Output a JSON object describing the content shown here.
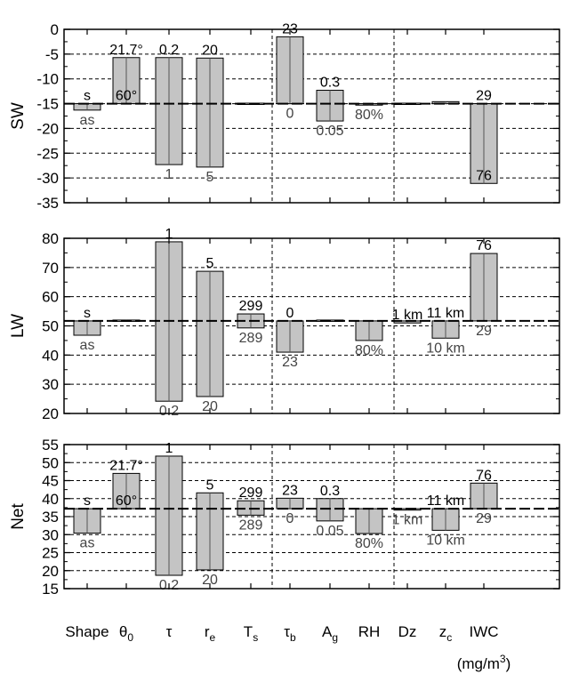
{
  "chart_data": [
    {
      "type": "bar",
      "panel": "SW",
      "ylabel": "SW",
      "ylim": [
        -35,
        0
      ],
      "yticks": [
        0,
        -5,
        -10,
        -15,
        -20,
        -25,
        -30,
        -35
      ],
      "baseline": -15,
      "grid": true,
      "bars": [
        {
          "category": "Shape",
          "ranges": [
            [
              -16.3,
              -15
            ]
          ],
          "upper_label": "s",
          "lower_label": "as"
        },
        {
          "category": "θ0",
          "ranges": [
            [
              -15,
              -5.7
            ]
          ],
          "upper_label": "21.7°",
          "lower_label": "60°",
          "lower_inside": true
        },
        {
          "category": "τ",
          "ranges": [
            [
              -27.3,
              -5.7
            ]
          ],
          "upper_label": "0.2",
          "lower_label": "1"
        },
        {
          "category": "re",
          "ranges": [
            [
              -27.8,
              -5.8
            ]
          ],
          "upper_label": "20",
          "lower_label": "5"
        },
        {
          "category": "Ts",
          "ranges": [
            [
              -15,
              -14.9
            ]
          ]
        },
        {
          "category": "τb",
          "ranges": [
            [
              -15,
              -1.5
            ]
          ],
          "upper_label": "23",
          "lower_label": "0"
        },
        {
          "category": "Ag",
          "ranges": [
            [
              -18.5,
              -12.3
            ]
          ],
          "upper_label": "0.3",
          "lower_label": "0.05"
        },
        {
          "category": "RH",
          "ranges": [
            [
              -15.3,
              -15
            ]
          ],
          "lower_label": "80%"
        },
        {
          "category": "Dz",
          "ranges": [
            [
              -15,
              -14.9
            ]
          ]
        },
        {
          "category": "zc",
          "ranges": [
            [
              -15,
              -14.6
            ]
          ]
        },
        {
          "category": "IWC",
          "ranges": [
            [
              -31.1,
              -15
            ]
          ],
          "upper_label": "29",
          "lower_label": "76",
          "lower_inside": true
        }
      ]
    },
    {
      "type": "bar",
      "panel": "LW",
      "ylabel": "LW",
      "ylim": [
        20,
        80
      ],
      "yticks": [
        80,
        70,
        60,
        50,
        40,
        30,
        20
      ],
      "baseline": 51.7,
      "grid": true,
      "bars": [
        {
          "category": "Shape",
          "ranges": [
            [
              46.8,
              51.7
            ]
          ],
          "upper_label": "s",
          "lower_label": "as"
        },
        {
          "category": "θ0",
          "ranges": [
            [
              51.7,
              52.0
            ]
          ]
        },
        {
          "category": "τ",
          "ranges": [
            [
              24.2,
              78.8
            ]
          ],
          "upper_label": "1",
          "lower_label": "0.2"
        },
        {
          "category": "re",
          "ranges": [
            [
              25.8,
              68.7
            ]
          ],
          "upper_label": "5",
          "lower_label": "20"
        },
        {
          "category": "Ts",
          "ranges": [
            [
              49.3,
              54.1
            ]
          ],
          "upper_label": "299",
          "lower_label": "289"
        },
        {
          "category": "τb",
          "ranges": [
            [
              41.0,
              51.7
            ]
          ],
          "upper_label": "0",
          "lower_label": "23"
        },
        {
          "category": "Ag",
          "ranges": [
            [
              51.7,
              52.0
            ]
          ]
        },
        {
          "category": "RH",
          "ranges": [
            [
              45.0,
              51.7
            ]
          ],
          "lower_label": "80%"
        },
        {
          "category": "Dz",
          "ranges": [
            [
              51.0,
              51.7
            ]
          ],
          "lower_label": "1 km",
          "lower_inside": true
        },
        {
          "category": "zc",
          "ranges": [
            [
              45.8,
              51.7
            ]
          ],
          "upper_label": "11 km",
          "lower_label": "10 km"
        },
        {
          "category": "IWC",
          "ranges": [
            [
              51.7,
              74.8
            ]
          ],
          "upper_label": "76",
          "lower_label": "29"
        }
      ]
    },
    {
      "type": "bar",
      "panel": "Net",
      "ylabel": "Net",
      "ylim": [
        15,
        55
      ],
      "yticks": [
        55,
        50,
        45,
        40,
        35,
        30,
        25,
        20,
        15
      ],
      "baseline": 37.2,
      "grid": true,
      "bars": [
        {
          "category": "Shape",
          "ranges": [
            [
              30.4,
              37.2
            ]
          ],
          "upper_label": "s",
          "lower_label": "as"
        },
        {
          "category": "θ0",
          "ranges": [
            [
              37.2,
              47.0
            ]
          ],
          "upper_label": "21.7°",
          "lower_label": "60°",
          "lower_inside": true
        },
        {
          "category": "τ",
          "ranges": [
            [
              18.7,
              51.8
            ]
          ],
          "upper_label": "1",
          "lower_label": "0.2"
        },
        {
          "category": "re",
          "ranges": [
            [
              20.2,
              41.6
            ]
          ],
          "upper_label": "5",
          "lower_label": "20"
        },
        {
          "category": "Ts",
          "ranges": [
            [
              35.4,
              39.4
            ]
          ],
          "upper_label": "299",
          "lower_label": "289"
        },
        {
          "category": "τb",
          "ranges": [
            [
              37.2,
              40.1
            ]
          ],
          "upper_label": "23",
          "lower_label": "0"
        },
        {
          "category": "Ag",
          "ranges": [
            [
              33.8,
              40.0
            ]
          ],
          "upper_label": "0.3",
          "lower_label": "0.05"
        },
        {
          "category": "RH",
          "ranges": [
            [
              30.3,
              37.2
            ]
          ],
          "lower_label": "80%"
        },
        {
          "category": "Dz",
          "ranges": [
            [
              36.8,
              37.2
            ]
          ],
          "lower_label": "1 km"
        },
        {
          "category": "zc",
          "ranges": [
            [
              31.2,
              37.2
            ]
          ],
          "upper_label": "11 km",
          "lower_label": "10 km"
        },
        {
          "category": "IWC",
          "ranges": [
            [
              37.2,
              44.3
            ]
          ],
          "upper_label": "76",
          "lower_label": "29"
        }
      ]
    }
  ],
  "categories": [
    {
      "main": "Shape",
      "sub": ""
    },
    {
      "main": "θ",
      "sub": "0"
    },
    {
      "main": "τ",
      "sub": ""
    },
    {
      "main": "r",
      "sub": "e"
    },
    {
      "main": "T",
      "sub": "s"
    },
    {
      "main": "τ",
      "sub": "b"
    },
    {
      "main": "A",
      "sub": "g"
    },
    {
      "main": "RH",
      "sub": ""
    },
    {
      "main": "Dz",
      "sub": ""
    },
    {
      "main": "z",
      "sub": "c"
    },
    {
      "main": "IWC",
      "sub": ""
    }
  ],
  "unit_label": {
    "prefix": "(mg/m",
    "sup": "3",
    "suffix": ")"
  },
  "colors": {
    "bar_fill": "#c4c4c4",
    "bar_stroke": "#000000",
    "lower_label_color": "#444444"
  }
}
